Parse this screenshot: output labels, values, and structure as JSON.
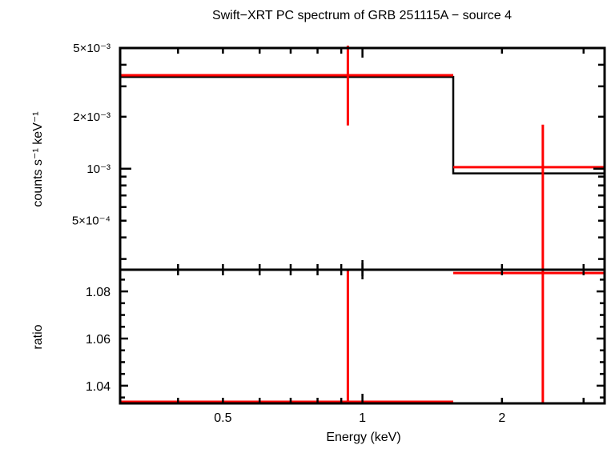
{
  "chart_data": [
    {
      "type": "line",
      "title": "Swift−XRT PC spectrum of GRB 251115A − source 4",
      "ylabel": "counts s⁻¹ keV⁻¹",
      "xscale": "log",
      "yscale": "log",
      "xlim": [
        0.3,
        3.33
      ],
      "ylim": [
        0.00026,
        0.005
      ],
      "ytick_labels": [
        {
          "value": 0.005,
          "label": "5×10⁻³"
        },
        {
          "value": 0.002,
          "label": "2×10⁻³"
        },
        {
          "value": 0.001,
          "label": "10⁻³"
        },
        {
          "value": 0.0005,
          "label": "5×10⁻⁴"
        }
      ],
      "series": [
        {
          "role": "data",
          "color": "#ff0000",
          "points": [
            {
              "xlo": 0.3,
              "xhi": 1.57,
              "x": 0.93,
              "y": 0.00348,
              "ylo": 0.00178,
              "yhi": 0.0055
            },
            {
              "xlo": 1.57,
              "xhi": 3.33,
              "x": 2.45,
              "y": 0.00102,
              "ylo": 0.0002,
              "yhi": 0.0018
            }
          ]
        },
        {
          "role": "model",
          "color": "#000000",
          "steps": [
            {
              "xlo": 0.3,
              "xhi": 1.57,
              "y": 0.0034
            },
            {
              "xlo": 1.57,
              "xhi": 3.33,
              "y": 0.00094
            }
          ]
        }
      ]
    },
    {
      "type": "line",
      "xlabel": "Energy (keV)",
      "ylabel": "ratio",
      "xscale": "log",
      "xlim": [
        0.3,
        3.33
      ],
      "ylim": [
        1.0325,
        1.0892
      ],
      "xtick_labels": [
        {
          "value": 0.5,
          "label": "0.5"
        },
        {
          "value": 1,
          "label": "1"
        },
        {
          "value": 2,
          "label": "2"
        }
      ],
      "ytick_labels": [
        {
          "value": 1.08,
          "label": "1.08"
        },
        {
          "value": 1.06,
          "label": "1.06"
        },
        {
          "value": 1.04,
          "label": "1.04"
        }
      ],
      "series": [
        {
          "role": "ratio",
          "color": "#ff0000",
          "points": [
            {
              "xlo": 0.3,
              "xhi": 1.57,
              "x": 0.93,
              "y": 1.0332,
              "ylo": 1.0,
              "yhi": 1.2
            },
            {
              "xlo": 1.57,
              "xhi": 3.33,
              "x": 2.45,
              "y": 1.0878,
              "ylo": 1.0,
              "yhi": 1.2
            }
          ]
        }
      ]
    }
  ]
}
